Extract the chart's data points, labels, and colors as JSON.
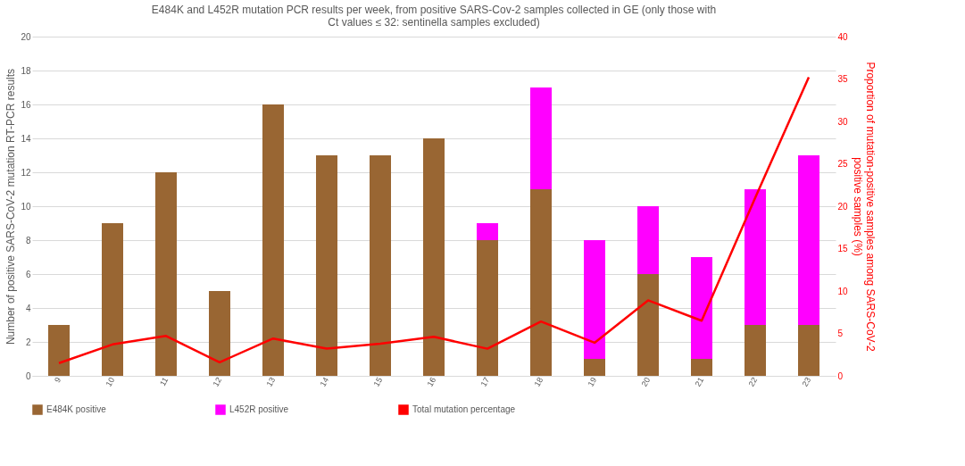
{
  "chart_data": {
    "type": "bar",
    "stacked": true,
    "title": "E484K and L452R mutation PCR results per week, from positive SARS-Cov-2 samples collected in GE  (only those with Ct values ≤ 32: sentinella samples excluded)",
    "ylabel": "Number of positive SARS-CoV-2 mutation RT-PCR results",
    "y2label": "Proportion of  mutation-positive samples among SARS-CoV-2 positive samples (%)",
    "categories": [
      "9",
      "10",
      "11",
      "12",
      "13",
      "14",
      "15",
      "16",
      "17",
      "18",
      "19",
      "20",
      "21",
      "22",
      "23"
    ],
    "series": [
      {
        "name": "E484K positive",
        "color": "#996633",
        "values": [
          3,
          9,
          12,
          5,
          16,
          13,
          13,
          14,
          8,
          11,
          1,
          6,
          1,
          3,
          3
        ]
      },
      {
        "name": "L452R positive",
        "color": "#ff00ff",
        "values": [
          0,
          0,
          0,
          0,
          0,
          0,
          0,
          0,
          1,
          6,
          7,
          4,
          6,
          8,
          10
        ]
      },
      {
        "name": "Total mutation percentage",
        "type": "line",
        "axis": "y2",
        "color": "#ff0000",
        "values": [
          1.5,
          3.7,
          4.7,
          1.6,
          4.4,
          3.2,
          3.8,
          4.6,
          3.2,
          6.4,
          3.9,
          8.9,
          6.5,
          21,
          35.2
        ]
      }
    ],
    "ylim": [
      0,
      20
    ],
    "yticks": [
      0,
      2,
      4,
      6,
      8,
      10,
      12,
      14,
      16,
      18,
      20
    ],
    "y2lim": [
      0,
      40
    ],
    "y2ticks": [
      0,
      5,
      10,
      15,
      20,
      25,
      30,
      35,
      40
    ],
    "grid": "y",
    "legend": "bottom"
  }
}
